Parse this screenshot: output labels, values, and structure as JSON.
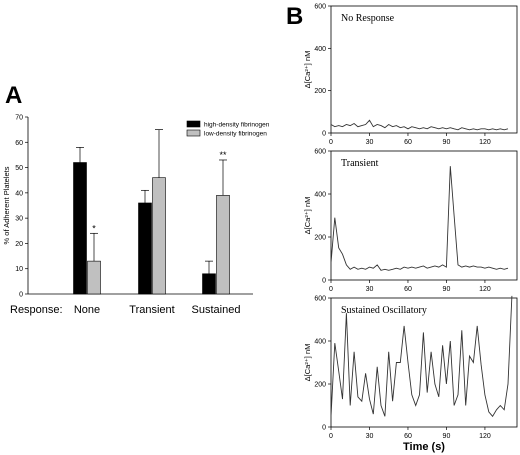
{
  "panel_a_label": "A",
  "panel_b_label": "B",
  "chart_data": [
    {
      "type": "bar",
      "panel": "A",
      "title": "",
      "ylabel": "% of Adherent Platelets",
      "xlabel": "Response:",
      "ylim": [
        0,
        70
      ],
      "yticks": [
        0,
        10,
        20,
        30,
        40,
        50,
        60,
        70
      ],
      "categories": [
        "None",
        "Transient",
        "Sustained"
      ],
      "legend_position": "top-right",
      "grid": false,
      "series": [
        {
          "name": "high-density fibrinogen",
          "color": "#000000",
          "values": [
            52,
            36,
            8
          ],
          "errors": [
            6,
            5,
            5
          ]
        },
        {
          "name": "low-density fibrinogen",
          "color": "#c0c0c0",
          "values": [
            13,
            46,
            39
          ],
          "errors": [
            11,
            19,
            14
          ]
        }
      ],
      "annotations": [
        {
          "category": "None",
          "series": 1,
          "text": "*"
        },
        {
          "category": "Sustained",
          "series": 1,
          "text": "**"
        }
      ]
    },
    {
      "type": "line",
      "panel": "B",
      "title": "No Response",
      "ylabel": "Δ[Ca²⁺] nM",
      "ylim": [
        0,
        600
      ],
      "xlim": [
        0,
        145
      ],
      "yticks": [
        0,
        200,
        400,
        600
      ],
      "xticks": [
        0,
        30,
        60,
        90,
        120
      ],
      "x": [
        0,
        3,
        6,
        9,
        12,
        15,
        18,
        21,
        24,
        27,
        30,
        33,
        36,
        39,
        42,
        45,
        48,
        51,
        54,
        57,
        60,
        63,
        66,
        69,
        72,
        75,
        78,
        81,
        84,
        87,
        90,
        93,
        96,
        99,
        102,
        105,
        108,
        111,
        114,
        117,
        120,
        123,
        126,
        129,
        132,
        135,
        138
      ],
      "y": [
        40,
        30,
        35,
        30,
        40,
        35,
        45,
        30,
        35,
        40,
        60,
        30,
        40,
        35,
        25,
        40,
        30,
        35,
        25,
        30,
        20,
        30,
        25,
        20,
        25,
        20,
        30,
        25,
        20,
        25,
        20,
        25,
        20,
        15,
        25,
        20,
        15,
        20,
        15,
        20,
        20,
        15,
        20,
        15,
        20,
        15,
        20
      ]
    },
    {
      "type": "line",
      "panel": "B",
      "title": "Transient",
      "ylabel": "Δ[Ca²⁺] nM",
      "ylim": [
        0,
        600
      ],
      "xlim": [
        0,
        145
      ],
      "yticks": [
        0,
        200,
        400,
        600
      ],
      "xticks": [
        0,
        30,
        60,
        90,
        120
      ],
      "x": [
        0,
        3,
        6,
        9,
        12,
        15,
        18,
        21,
        24,
        27,
        30,
        33,
        36,
        39,
        42,
        45,
        48,
        51,
        54,
        57,
        60,
        63,
        66,
        69,
        72,
        75,
        78,
        81,
        84,
        87,
        90,
        93,
        96,
        99,
        102,
        105,
        108,
        111,
        114,
        117,
        120,
        123,
        126,
        129,
        132,
        135,
        138
      ],
      "y": [
        80,
        290,
        150,
        120,
        70,
        50,
        60,
        50,
        55,
        50,
        60,
        55,
        70,
        45,
        50,
        45,
        50,
        55,
        50,
        60,
        55,
        60,
        55,
        60,
        65,
        55,
        60,
        65,
        60,
        70,
        60,
        530,
        300,
        70,
        60,
        65,
        60,
        65,
        60,
        60,
        55,
        60,
        55,
        50,
        55,
        50,
        55
      ]
    },
    {
      "type": "line",
      "panel": "B",
      "title": "Sustained Oscillatory",
      "ylabel": "Δ[Ca²⁺] nM",
      "xlabel": "Time (s)",
      "ylim": [
        0,
        600
      ],
      "xlim": [
        0,
        145
      ],
      "yticks": [
        0,
        200,
        400,
        600
      ],
      "xticks": [
        0,
        30,
        60,
        90,
        120
      ],
      "x": [
        0,
        3,
        6,
        9,
        12,
        15,
        18,
        21,
        24,
        27,
        30,
        33,
        36,
        39,
        42,
        45,
        48,
        51,
        54,
        57,
        60,
        63,
        66,
        69,
        72,
        75,
        78,
        81,
        84,
        87,
        90,
        93,
        96,
        99,
        102,
        105,
        108,
        111,
        114,
        117,
        120,
        123,
        126,
        129,
        132,
        135,
        138,
        141
      ],
      "y": [
        50,
        390,
        260,
        130,
        530,
        100,
        350,
        140,
        120,
        250,
        130,
        60,
        280,
        100,
        50,
        350,
        120,
        300,
        300,
        470,
        300,
        150,
        100,
        150,
        440,
        160,
        350,
        200,
        140,
        380,
        200,
        400,
        100,
        150,
        450,
        100,
        330,
        300,
        470,
        290,
        150,
        70,
        50,
        80,
        100,
        80,
        200,
        610
      ]
    }
  ]
}
